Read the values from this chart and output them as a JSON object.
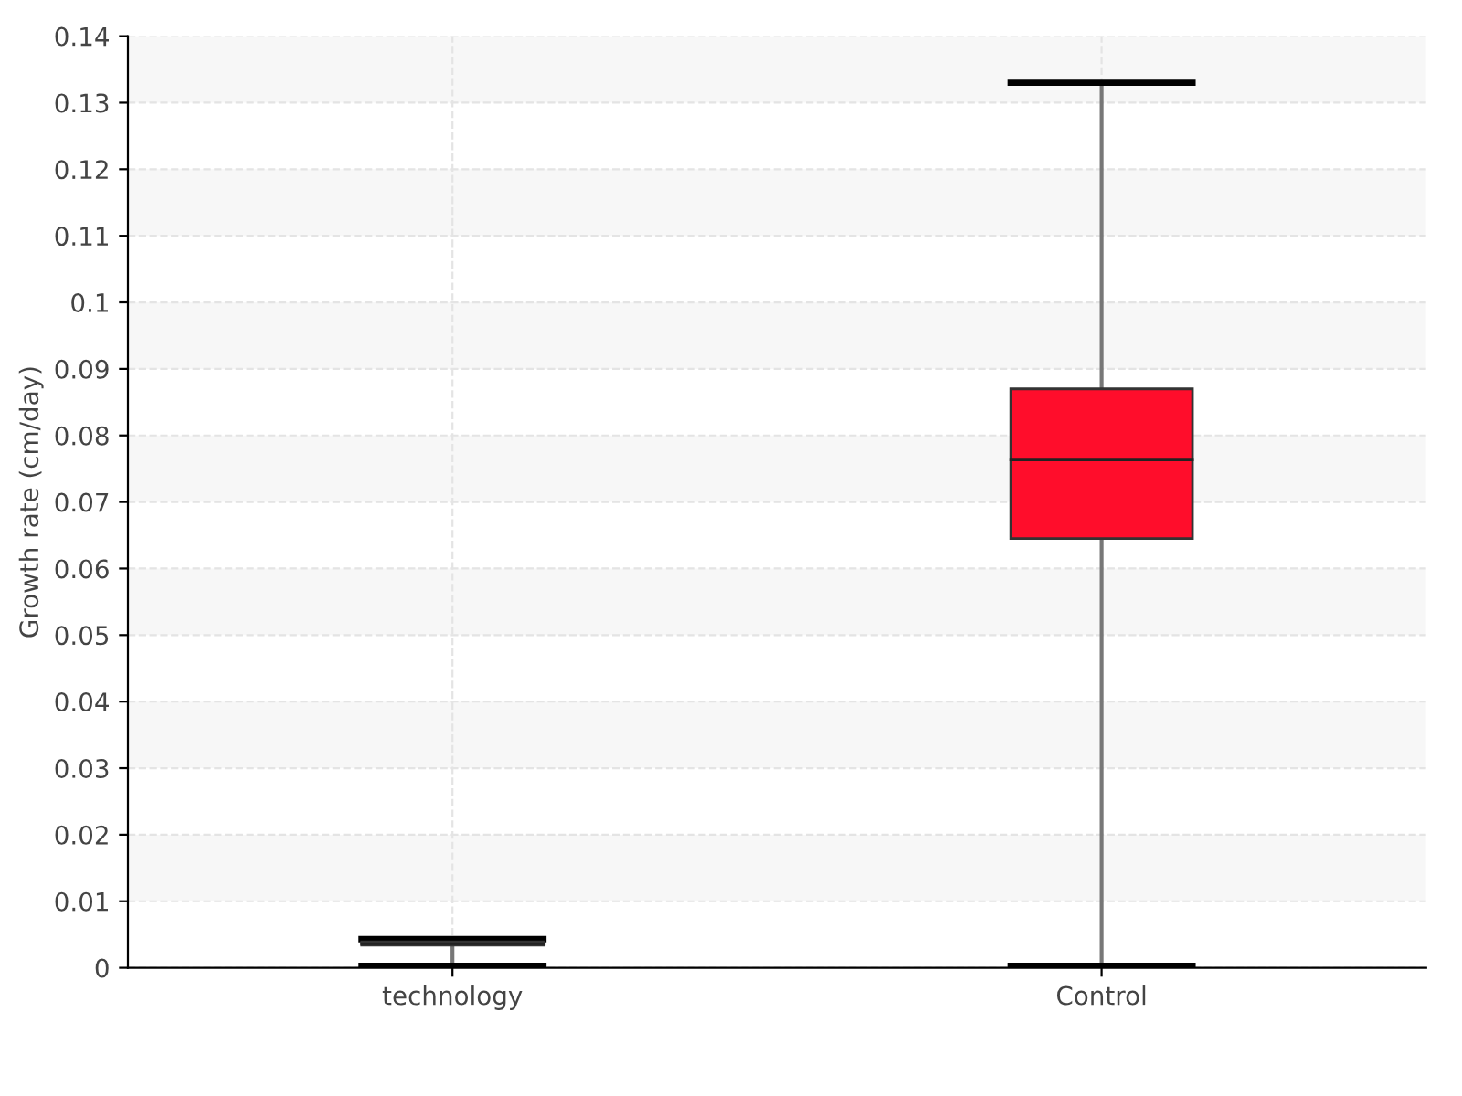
{
  "chart_data": {
    "type": "box",
    "ylabel": "Growth rate (cm/day)",
    "categories": [
      "technology",
      "Control"
    ],
    "boxes": [
      {
        "low": 0.0003,
        "q1": 0.0034,
        "median": 0.0036,
        "q3": 0.0039,
        "high": 0.0043
      },
      {
        "low": 0.0003,
        "q1": 0.0645,
        "median": 0.0763,
        "q3": 0.087,
        "high": 0.133
      }
    ],
    "colors": [
      "#1e5a1e",
      "#ff0d2b"
    ],
    "ylim": [
      0,
      0.14
    ],
    "yticks": [
      0,
      0.01,
      0.02,
      0.03,
      0.04,
      0.05,
      0.06,
      0.07,
      0.08,
      0.09,
      {
        "value": 0.1,
        "label": "0.1"
      },
      0.11,
      0.12,
      0.13,
      0.14
    ],
    "grid": true
  }
}
